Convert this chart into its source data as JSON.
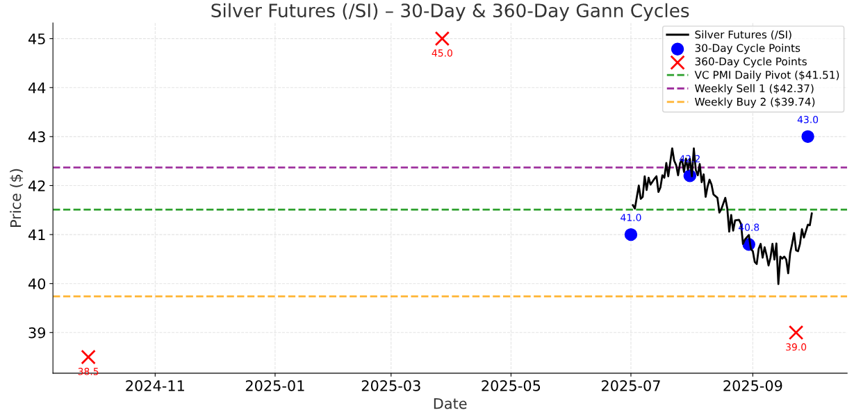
{
  "chart_data": {
    "type": "line",
    "title": "Silver Futures (/SI) – 30-Day & 360-Day Gann Cycles",
    "xlabel": "Date",
    "ylabel": "Price ($)",
    "xlim": [
      "2024-09-10",
      "2025-10-19"
    ],
    "xticks": [
      "2024-11",
      "2025-01",
      "2025-03",
      "2025-05",
      "2025-07",
      "2025-09"
    ],
    "ylim": [
      38.17,
      45.32
    ],
    "yticks": [
      39,
      40,
      41,
      42,
      43,
      44,
      45
    ],
    "grid": true,
    "legend": "top right",
    "series": [
      {
        "name": "Silver Futures (/SI)",
        "color": "#000000",
        "marker": "none",
        "line_style": "solid",
        "x": [
          "2025-07-02",
          "2025-07-03",
          "2025-07-05",
          "2025-07-06",
          "2025-07-07",
          "2025-07-08",
          "2025-07-09",
          "2025-07-10",
          "2025-07-11",
          "2025-07-13",
          "2025-07-14",
          "2025-07-15",
          "2025-07-16",
          "2025-07-17",
          "2025-07-18",
          "2025-07-19",
          "2025-07-20",
          "2025-07-22",
          "2025-07-23",
          "2025-07-24",
          "2025-07-25",
          "2025-07-26",
          "2025-07-27",
          "2025-07-28",
          "2025-07-29",
          "2025-07-30",
          "2025-07-31",
          "2025-08-01",
          "2025-08-02",
          "2025-08-03",
          "2025-08-04",
          "2025-08-05",
          "2025-08-06",
          "2025-08-07",
          "2025-08-08",
          "2025-08-09",
          "2025-08-10",
          "2025-08-11",
          "2025-08-12",
          "2025-08-14",
          "2025-08-15",
          "2025-08-16",
          "2025-08-18",
          "2025-08-19",
          "2025-08-20",
          "2025-08-21",
          "2025-08-22",
          "2025-08-23",
          "2025-08-25",
          "2025-08-26",
          "2025-08-27",
          "2025-08-28",
          "2025-08-30",
          "2025-08-31",
          "2025-09-01",
          "2025-09-02",
          "2025-09-03",
          "2025-09-04",
          "2025-09-05",
          "2025-09-06",
          "2025-09-07",
          "2025-09-08",
          "2025-09-09",
          "2025-09-10",
          "2025-09-11",
          "2025-09-12",
          "2025-09-13",
          "2025-09-14",
          "2025-09-15",
          "2025-09-16",
          "2025-09-17",
          "2025-09-18",
          "2025-09-19",
          "2025-09-20",
          "2025-09-21",
          "2025-09-22",
          "2025-09-23",
          "2025-09-24",
          "2025-09-25",
          "2025-09-26",
          "2025-09-27",
          "2025-09-29",
          "2025-09-30",
          "2025-10-01"
        ],
        "values": [
          41.6,
          41.53,
          42.0,
          41.73,
          41.77,
          42.19,
          41.91,
          42.16,
          42.02,
          42.14,
          42.19,
          41.87,
          41.96,
          42.21,
          42.16,
          42.46,
          42.19,
          42.76,
          42.51,
          42.42,
          42.21,
          42.46,
          42.53,
          42.28,
          42.55,
          42.32,
          42.55,
          42.19,
          42.76,
          42.32,
          42.21,
          42.44,
          42.07,
          42.23,
          41.77,
          41.98,
          42.12,
          42.02,
          41.82,
          41.75,
          41.45,
          41.52,
          41.75,
          41.54,
          41.06,
          41.4,
          41.08,
          41.29,
          41.3,
          41.22,
          40.81,
          40.9,
          40.99,
          40.71,
          40.66,
          40.44,
          40.4,
          40.71,
          40.81,
          40.53,
          40.74,
          40.58,
          40.37,
          40.53,
          40.81,
          40.49,
          40.82,
          39.99,
          40.55,
          40.51,
          40.55,
          40.49,
          40.21,
          40.62,
          40.81,
          41.03,
          40.68,
          40.66,
          40.81,
          41.11,
          40.94,
          41.2,
          41.19,
          41.43
        ]
      },
      {
        "name": "30-Day Cycle Points",
        "type": "scatter",
        "color": "#0000ff",
        "marker": "circle",
        "x": [
          "2025-07-01",
          "2025-07-31",
          "2025-08-30",
          "2025-09-29"
        ],
        "values": [
          41.0,
          42.2,
          40.8,
          43.0
        ],
        "value_labels": [
          "41.0",
          "42.2",
          "40.8",
          "43.0"
        ]
      },
      {
        "name": "360-Day Cycle Points",
        "type": "scatter",
        "color": "#ff0000",
        "marker": "cross",
        "x": [
          "2024-09-28",
          "2025-03-27",
          "2025-09-23"
        ],
        "values": [
          38.5,
          45.0,
          39.0
        ],
        "value_labels": [
          "38.5",
          "45.0",
          "39.0"
        ]
      }
    ],
    "ref_lines": [
      {
        "axis": "y",
        "value": 41.51,
        "label": "VC PMI Daily Pivot ($41.51)",
        "color": "#2ca02c",
        "line_style": "dashed"
      },
      {
        "axis": "y",
        "value": 42.37,
        "label": "Weekly Sell 1 ($42.37)",
        "color": "#a0339f",
        "line_style": "dashed"
      },
      {
        "axis": "y",
        "value": 39.74,
        "label": "Weekly Buy 2 ($39.74)",
        "color": "#ffb433",
        "line_style": "dashed"
      }
    ]
  }
}
